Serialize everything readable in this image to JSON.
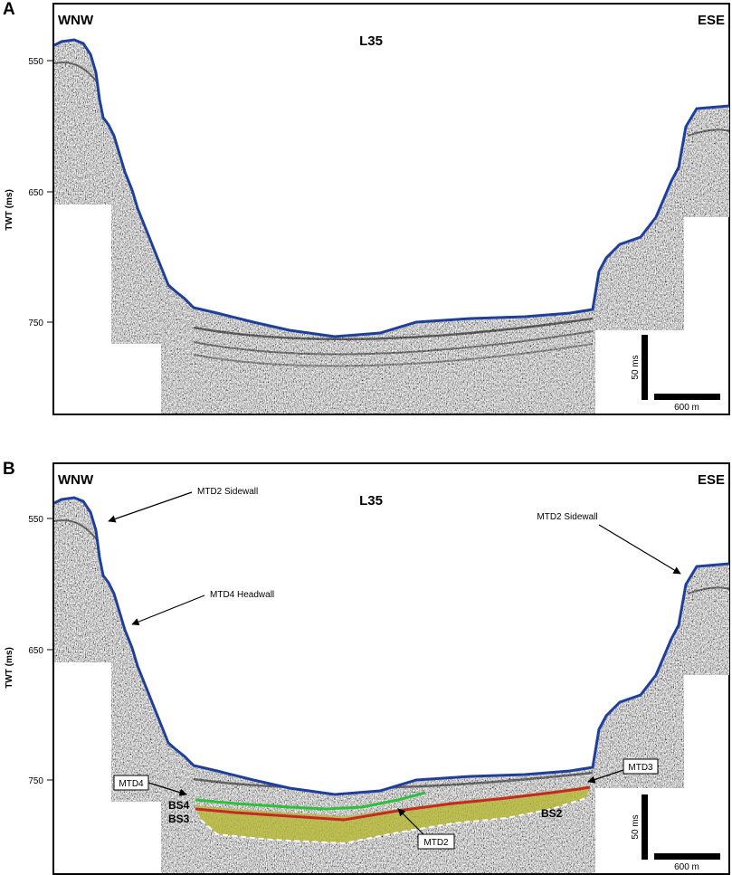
{
  "panels": [
    {
      "label": "A",
      "line": "L35",
      "left_direction": "WNW",
      "right_direction": "ESE",
      "y_axis_label": "TWT (ms)",
      "y_ticks": [
        "550",
        "650",
        "750"
      ],
      "scale_vertical": "50 ms",
      "scale_horizontal": "600 m",
      "annotations": [],
      "horizons": []
    },
    {
      "label": "B",
      "line": "L35",
      "left_direction": "WNW",
      "right_direction": "ESE",
      "y_axis_label": "TWT (ms)",
      "y_ticks": [
        "550",
        "650",
        "750"
      ],
      "scale_vertical": "50 ms",
      "scale_horizontal": "600 m",
      "annotations": [
        {
          "text": "MTD2 Sidewall"
        },
        {
          "text": "MTD2 Sidewall"
        },
        {
          "text": "MTD4 Headwall"
        },
        {
          "text": "MTD4"
        },
        {
          "text": "MTD3"
        },
        {
          "text": "MTD2"
        }
      ],
      "horizons": [
        {
          "text": "BS4"
        },
        {
          "text": "BS3"
        },
        {
          "text": "BS2"
        }
      ]
    }
  ],
  "colors": {
    "seafloor": "#1f3f9c",
    "bs4_horizon": "#2fbf3c",
    "bs3_horizon": "#c62828",
    "mtd2_fill": "#b5b832",
    "mtd2_outline": "#ffffff"
  }
}
